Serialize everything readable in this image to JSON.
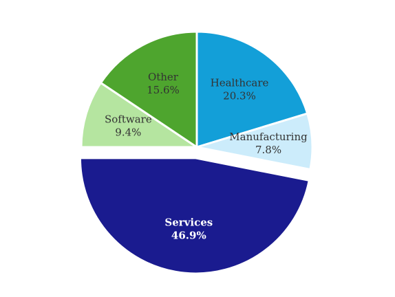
{
  "chart_data": {
    "type": "pie",
    "title": "",
    "start_angle_deg": 0,
    "direction": "clockwise",
    "slices": [
      {
        "label": "Healthcare",
        "value": 20.3,
        "value_label": "20.3%",
        "color": "#139fd8",
        "text_color": "#333333",
        "exploded": false
      },
      {
        "label": "Manufacturing",
        "value": 7.8,
        "value_label": "7.8%",
        "color": "#ccecfb",
        "text_color": "#333333",
        "exploded": false
      },
      {
        "label": "Services",
        "value": 46.9,
        "value_label": "46.9%",
        "color": "#1a1b8f",
        "text_color": "#ffffff",
        "exploded": true
      },
      {
        "label": "Software",
        "value": 9.4,
        "value_label": "9.4%",
        "color": "#b5e5a0",
        "text_color": "#333333",
        "exploded": false
      },
      {
        "label": "Other",
        "value": 15.6,
        "value_label": "15.6%",
        "color": "#4ea52e",
        "text_color": "#333333",
        "exploded": false
      }
    ]
  }
}
